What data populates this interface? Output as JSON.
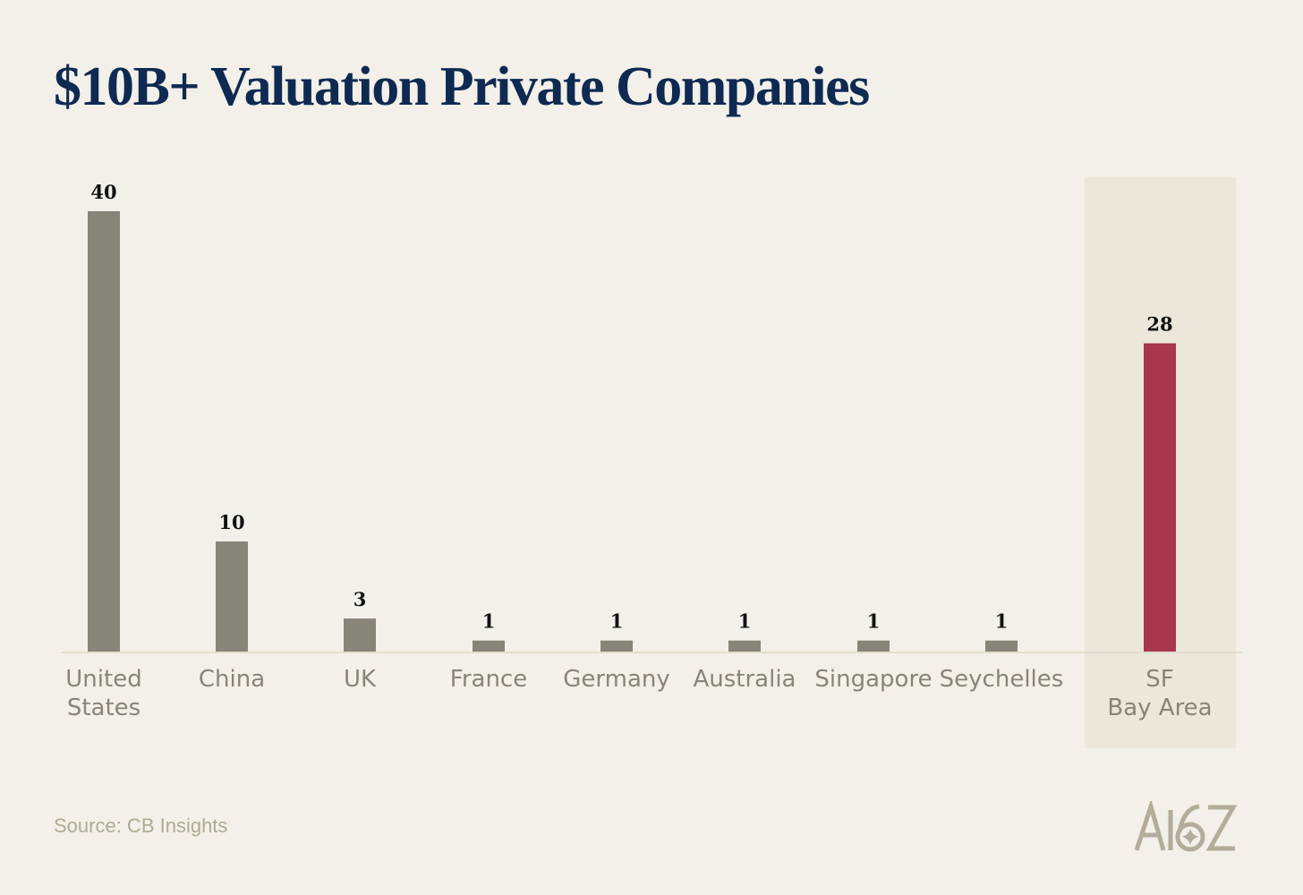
{
  "title": "$10B+ Valuation Private Companies",
  "source": "Source: CB Insights",
  "logo_text": "A16Z",
  "colors": {
    "bar": "#878479",
    "highlight_bar": "#a8364f",
    "highlight_bg": "#ece6db",
    "title": "#0e2a52"
  },
  "chart_data": {
    "type": "bar",
    "title": "$10B+ Valuation Private Companies",
    "categories": [
      [
        "United",
        "States"
      ],
      [
        "China"
      ],
      [
        "UK"
      ],
      [
        "France"
      ],
      [
        "Germany"
      ],
      [
        "Australia"
      ],
      [
        "Singapore"
      ],
      [
        "Seychelles"
      ],
      [
        "SF",
        "Bay Area"
      ]
    ],
    "values": [
      40,
      10,
      3,
      1,
      1,
      1,
      1,
      1,
      28
    ],
    "highlighted": [
      false,
      false,
      false,
      false,
      false,
      false,
      false,
      false,
      true
    ],
    "ylim": [
      0,
      40
    ],
    "xlabel": "",
    "ylabel": "",
    "grid": false
  }
}
